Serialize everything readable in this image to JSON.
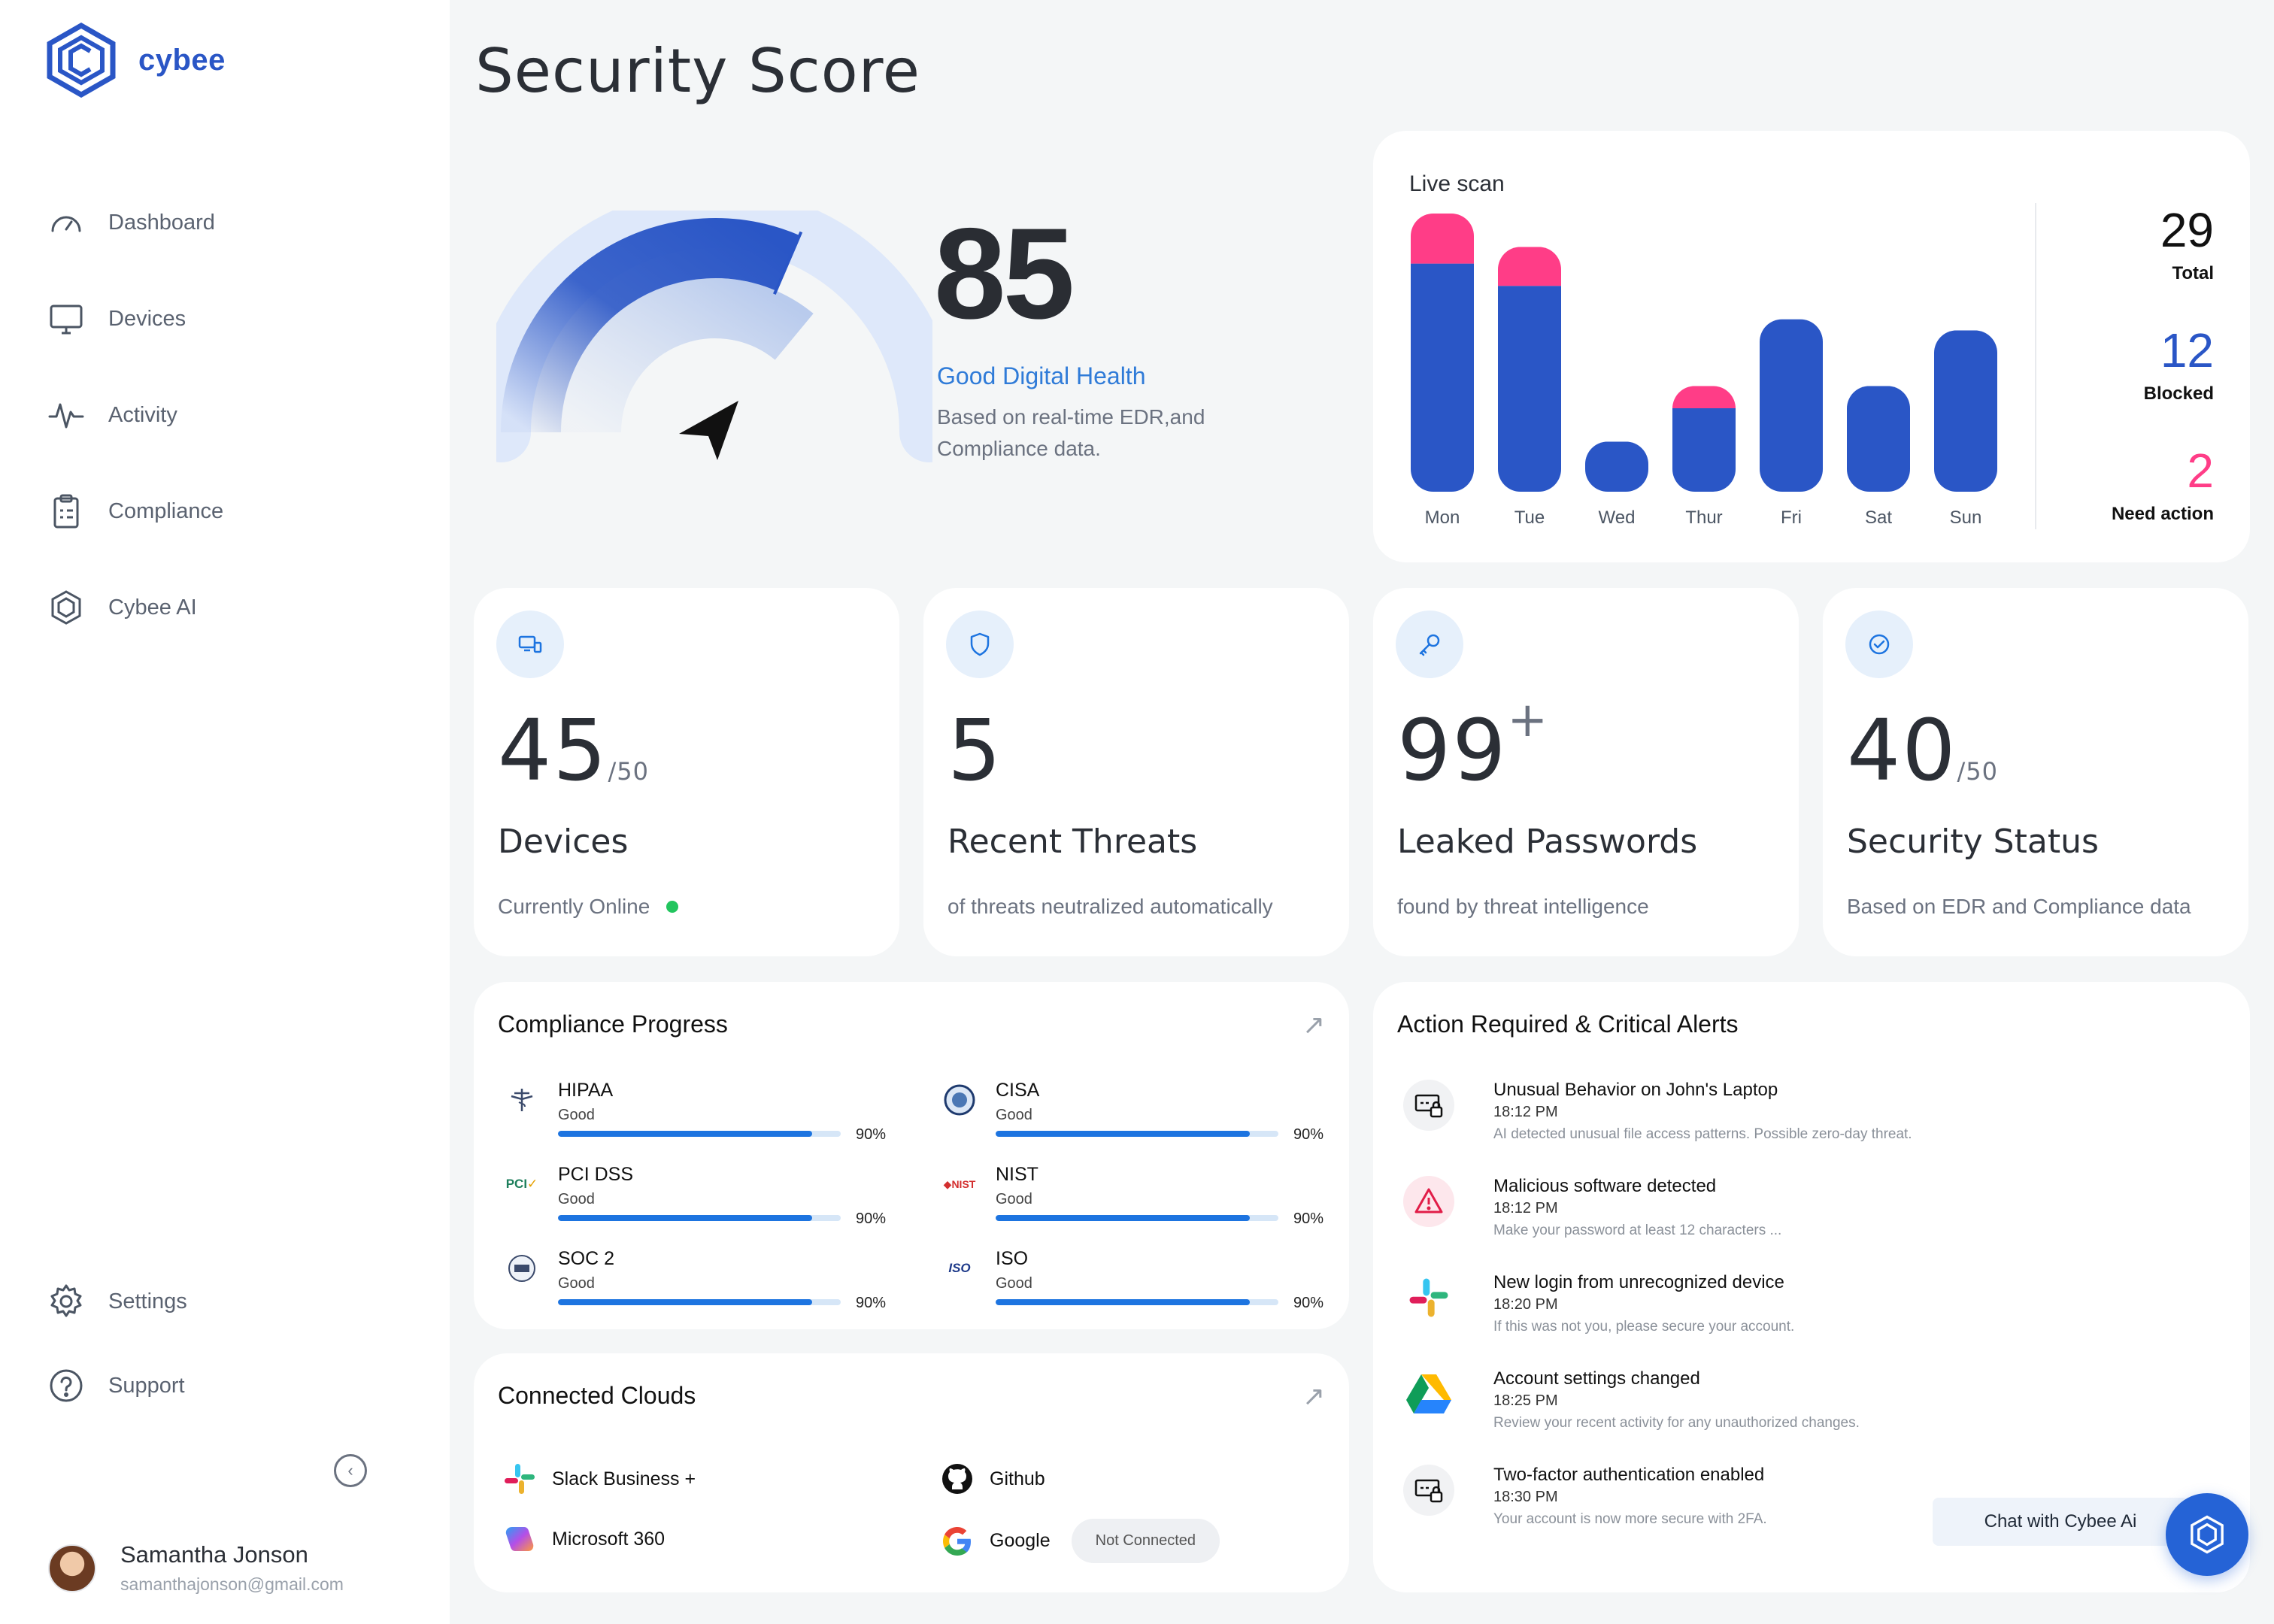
{
  "brand": {
    "name": "cybee",
    "color": "#2a56c6"
  },
  "sidebar": {
    "items": [
      {
        "label": "Dashboard",
        "icon": "gauge-icon"
      },
      {
        "label": "Devices",
        "icon": "monitor-icon"
      },
      {
        "label": "Activity",
        "icon": "activity-icon"
      },
      {
        "label": "Compliance",
        "icon": "clipboard-icon"
      },
      {
        "label": "Cybee AI",
        "icon": "cybee-ai-icon"
      }
    ],
    "bottom_items": [
      {
        "label": "Settings",
        "icon": "gear-icon"
      },
      {
        "label": "Support",
        "icon": "help-icon"
      }
    ],
    "collapse_icon": "chevron-left-icon"
  },
  "user": {
    "name": "Samantha Jonson",
    "email": "samanthajonson@gmail.com"
  },
  "page": {
    "title": "Security Score"
  },
  "score": {
    "value": "85",
    "gauge_level": 0.85,
    "status": "Good Digital Health",
    "description": "Based on real-time EDR,and Compliance data."
  },
  "live_scan": {
    "title": "Live scan",
    "total": {
      "value": "29",
      "label": "Total"
    },
    "blocked": {
      "value": "12",
      "label": "Blocked"
    },
    "need_action": {
      "value": "2",
      "label": "Need action"
    }
  },
  "chart_data": {
    "type": "bar",
    "stacked": true,
    "categories": [
      "Mon",
      "Tue",
      "Wed",
      "Thur",
      "Fri",
      "Sat",
      "Sun"
    ],
    "series": [
      {
        "values": [
          8.2,
          7.4,
          1.8,
          3.0,
          6.2,
          3.8,
          5.8
        ],
        "color": "#2a56c6"
      },
      {
        "values": [
          1.8,
          1.4,
          0,
          0.8,
          0,
          0,
          0
        ],
        "color": "#ff3d87"
      }
    ],
    "ylim": [
      0,
      10
    ],
    "grid": false
  },
  "stats": [
    {
      "icon": "devices-icon",
      "value": "45",
      "suffix": "/50",
      "label": "Devices",
      "description": "Currently Online"
    },
    {
      "icon": "shield-icon",
      "value": "5",
      "suffix": "",
      "label": "Recent Threats",
      "description": "of threats neutralized automatically"
    },
    {
      "icon": "key-icon",
      "value": "99",
      "sup": "+",
      "label": "Leaked Passwords",
      "description": "found by threat intelligence"
    },
    {
      "icon": "check-circle-icon",
      "value": "40",
      "suffix": "/50",
      "label": "Security Status",
      "description": "Based on EDR and Compliance data"
    }
  ],
  "compliance": {
    "title": "Compliance Progress",
    "items": [
      {
        "name": "HIPAA",
        "status": "Good",
        "percent": "90%",
        "level": 0.9
      },
      {
        "name": "CISA",
        "status": "Good",
        "percent": "90%",
        "level": 0.9
      },
      {
        "name": "PCI DSS",
        "status": "Good",
        "percent": "90%",
        "level": 0.9
      },
      {
        "name": "NIST",
        "status": "Good",
        "percent": "90%",
        "level": 0.9
      },
      {
        "name": "SOC 2",
        "status": "Good",
        "percent": "90%",
        "level": 0.9
      },
      {
        "name": "ISO",
        "status": "Good",
        "percent": "90%",
        "level": 0.9
      }
    ]
  },
  "clouds": {
    "title": "Connected Clouds",
    "items": [
      {
        "name": "Slack Business +",
        "icon": "slack-icon"
      },
      {
        "name": "Github",
        "icon": "github-icon"
      },
      {
        "name": "Microsoft 360",
        "icon": "microsoft-copilot-icon"
      },
      {
        "name": "Google",
        "icon": "google-icon",
        "badge": "Not Connected"
      }
    ]
  },
  "alerts": {
    "title": "Action Required & Critical Alerts",
    "items": [
      {
        "title": "Unusual Behavior on John's Laptop",
        "time": "18:12 PM",
        "description": "AI detected unusual file access patterns. Possible zero-day threat.",
        "icon": "laptop-lock-icon"
      },
      {
        "title": "Malicious software detected",
        "time": "18:12 PM",
        "description": "Make your password at least 12 characters ...",
        "icon": "warning-icon"
      },
      {
        "title": "New login from unrecognized device",
        "time": "18:20 PM",
        "description": "If this was not you, please secure your account.",
        "icon": "slack-icon"
      },
      {
        "title": "Account settings changed",
        "time": "18:25 PM",
        "description": "Review your recent activity for any unauthorized changes.",
        "icon": "google-drive-icon"
      },
      {
        "title": "Two-factor authentication enabled",
        "time": "18:30 PM",
        "description": "Your account is now more secure with 2FA.",
        "icon": "laptop-lock-icon"
      }
    ]
  },
  "chat": {
    "label": "Chat with Cybee Ai"
  }
}
